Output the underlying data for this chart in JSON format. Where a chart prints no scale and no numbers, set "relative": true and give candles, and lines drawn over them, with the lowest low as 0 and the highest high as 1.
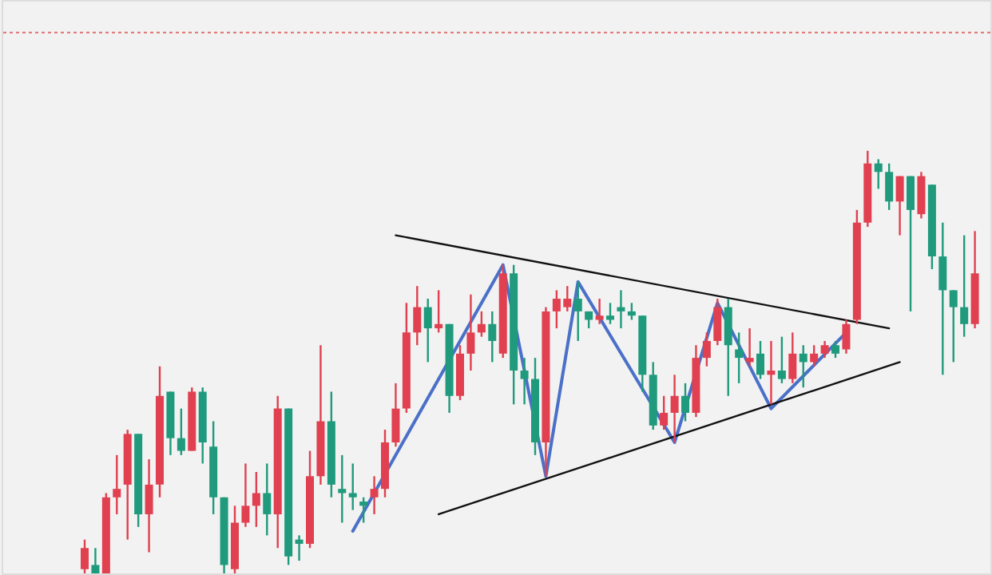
{
  "chart_data": {
    "type": "candlestick",
    "relative": true,
    "categories": [
      null,
      null,
      null,
      null,
      null,
      null,
      null,
      null,
      null,
      null,
      null,
      null,
      null,
      null,
      null,
      null,
      null,
      null,
      null,
      null,
      null,
      null,
      null,
      null,
      null,
      null,
      null,
      null,
      null,
      null,
      null,
      null,
      null,
      null,
      null,
      null,
      null,
      null,
      null,
      null,
      null,
      null,
      null,
      null,
      null,
      null,
      null,
      null,
      null,
      null,
      null,
      null,
      null,
      null,
      null,
      null,
      null,
      null,
      null,
      null,
      null,
      null,
      null,
      null,
      null,
      null,
      null,
      null,
      null,
      null,
      null,
      null,
      null,
      null,
      null,
      null,
      null,
      null,
      null,
      null,
      null,
      null,
      null,
      null
    ],
    "ohlc": [
      [
        0.01,
        0.08,
        0,
        0.06
      ],
      [
        0.02,
        0.06,
        0,
        0.0
      ],
      [
        0,
        0.19,
        0,
        0.18
      ],
      [
        0.18,
        0.28,
        0.14,
        0.2
      ],
      [
        0.21,
        0.34,
        0.08,
        0.33
      ],
      [
        0.33,
        0.33,
        0.11,
        0.14
      ],
      [
        0.14,
        0.27,
        0.05,
        0.21
      ],
      [
        0.21,
        0.49,
        0.18,
        0.42
      ],
      [
        0.43,
        0.43,
        0.28,
        0.32
      ],
      [
        0.32,
        0.39,
        0.28,
        0.29
      ],
      [
        0.29,
        0.44,
        0.29,
        0.43
      ],
      [
        0.43,
        0.44,
        0.26,
        0.31
      ],
      [
        0.3,
        0.36,
        0.14,
        0.18
      ],
      [
        0.18,
        0.18,
        0,
        0.02
      ],
      [
        0.01,
        0.16,
        0,
        0.12
      ],
      [
        0.12,
        0.26,
        0.11,
        0.16
      ],
      [
        0.16,
        0.24,
        0.11,
        0.19
      ],
      [
        0.19,
        0.26,
        0.09,
        0.14
      ],
      [
        0.14,
        0.42,
        0.06,
        0.39
      ],
      [
        0.39,
        0.39,
        0.02,
        0.04
      ],
      [
        0.08,
        0.09,
        0.03,
        0.07
      ],
      [
        0.07,
        0.29,
        0.06,
        0.23
      ],
      [
        0.23,
        0.54,
        0.21,
        0.36
      ],
      [
        0.36,
        0.43,
        0.18,
        0.21
      ],
      [
        0.2,
        0.28,
        0.12,
        0.19
      ],
      [
        0.19,
        0.26,
        0.15,
        0.18
      ],
      [
        0.17,
        0.18,
        0.12,
        0.16
      ],
      [
        0.18,
        0.23,
        0.14,
        0.2
      ],
      [
        0.2,
        0.34,
        0.18,
        0.31
      ],
      [
        0.31,
        0.45,
        0.3,
        0.39
      ],
      [
        0.39,
        0.64,
        0.38,
        0.57
      ],
      [
        0.57,
        0.68,
        0.54,
        0.63
      ],
      [
        0.63,
        0.65,
        0.5,
        0.58
      ],
      [
        0.58,
        0.67,
        0.57,
        0.59
      ],
      [
        0.59,
        0.59,
        0.38,
        0.42
      ],
      [
        0.42,
        0.54,
        0.41,
        0.52
      ],
      [
        0.52,
        0.66,
        0.48,
        0.57
      ],
      [
        0.57,
        0.62,
        0.56,
        0.59
      ],
      [
        0.59,
        0.62,
        0.5,
        0.55
      ],
      [
        0.52,
        0.73,
        0.51,
        0.71
      ],
      [
        0.71,
        0.73,
        0.4,
        0.48
      ],
      [
        0.48,
        0.51,
        0.4,
        0.46
      ],
      [
        0.46,
        0.51,
        0.28,
        0.31
      ],
      [
        0.31,
        0.63,
        0.23,
        0.62
      ],
      [
        0.62,
        0.67,
        0.58,
        0.65
      ],
      [
        0.63,
        0.68,
        0.62,
        0.65
      ],
      [
        0.65,
        0.69,
        0.55,
        0.62
      ],
      [
        0.62,
        0.62,
        0.58,
        0.6
      ],
      [
        0.6,
        0.65,
        0.59,
        0.61
      ],
      [
        0.61,
        0.64,
        0.59,
        0.6
      ],
      [
        0.63,
        0.67,
        0.58,
        0.62
      ],
      [
        0.62,
        0.64,
        0.6,
        0.61
      ],
      [
        0.61,
        0.61,
        0.43,
        0.47
      ],
      [
        0.47,
        0.5,
        0.34,
        0.35
      ],
      [
        0.35,
        0.42,
        0.34,
        0.38
      ],
      [
        0.38,
        0.47,
        0.31,
        0.42
      ],
      [
        0.42,
        0.45,
        0.36,
        0.38
      ],
      [
        0.38,
        0.54,
        0.37,
        0.51
      ],
      [
        0.51,
        0.57,
        0.49,
        0.55
      ],
      [
        0.55,
        0.65,
        0.54,
        0.63
      ],
      [
        0.63,
        0.65,
        0.42,
        0.54
      ],
      [
        0.53,
        0.57,
        0.45,
        0.51
      ],
      [
        0.5,
        0.58,
        0.49,
        0.51
      ],
      [
        0.52,
        0.55,
        0.46,
        0.47
      ],
      [
        0.47,
        0.55,
        0.4,
        0.48
      ],
      [
        0.48,
        0.56,
        0.45,
        0.46
      ],
      [
        0.46,
        0.57,
        0.45,
        0.52
      ],
      [
        0.52,
        0.54,
        0.44,
        0.5
      ],
      [
        0.5,
        0.54,
        0.49,
        0.52
      ],
      [
        0.52,
        0.55,
        0.51,
        0.54
      ],
      [
        0.54,
        0.55,
        0.51,
        0.52
      ],
      [
        0.53,
        0.6,
        0.52,
        0.59
      ],
      [
        0.6,
        0.86,
        0.59,
        0.83
      ],
      [
        0.83,
        1.0,
        0.82,
        0.97
      ],
      [
        0.97,
        0.98,
        0.91,
        0.95
      ],
      [
        0.95,
        0.97,
        0.86,
        0.88
      ],
      [
        0.88,
        0.94,
        0.8,
        0.94
      ],
      [
        0.94,
        0.94,
        0.62,
        0.86
      ],
      [
        0.85,
        0.95,
        0.84,
        0.94
      ],
      [
        0.92,
        0.92,
        0.72,
        0.75
      ],
      [
        0.75,
        0.83,
        0.47,
        0.67
      ],
      [
        0.67,
        0.67,
        0.5,
        0.63
      ],
      [
        0.63,
        0.8,
        0.56,
        0.59
      ],
      [
        0.59,
        0.81,
        0.58,
        0.71
      ]
    ],
    "colors": [
      "#e0404f",
      "#1f9a7c",
      "#e0404f",
      "#e0404f",
      "#e0404f",
      "#1f9a7c",
      "#e0404f",
      "#e0404f",
      "#1f9a7c",
      "#1f9a7c",
      "#e0404f",
      "#1f9a7c",
      "#1f9a7c",
      "#1f9a7c",
      "#e0404f",
      "#e0404f",
      "#e0404f",
      "#1f9a7c",
      "#e0404f",
      "#1f9a7c",
      "#1f9a7c",
      "#e0404f",
      "#e0404f",
      "#1f9a7c",
      "#1f9a7c",
      "#1f9a7c",
      "#1f9a7c",
      "#e0404f",
      "#e0404f",
      "#e0404f",
      "#e0404f",
      "#e0404f",
      "#1f9a7c",
      "#e0404f",
      "#1f9a7c",
      "#e0404f",
      "#e0404f",
      "#e0404f",
      "#1f9a7c",
      "#e0404f",
      "#1f9a7c",
      "#1f9a7c",
      "#1f9a7c",
      "#e0404f",
      "#e0404f",
      "#e0404f",
      "#1f9a7c",
      "#1f9a7c",
      "#e0404f",
      "#1f9a7c",
      "#1f9a7c",
      "#1f9a7c",
      "#1f9a7c",
      "#1f9a7c",
      "#e0404f",
      "#e0404f",
      "#1f9a7c",
      "#e0404f",
      "#e0404f",
      "#e0404f",
      "#1f9a7c",
      "#1f9a7c",
      "#e0404f",
      "#1f9a7c",
      "#e0404f",
      "#1f9a7c",
      "#e0404f",
      "#1f9a7c",
      "#e0404f",
      "#e0404f",
      "#1f9a7c",
      "#e0404f",
      "#e0404f",
      "#e0404f",
      "#1f9a7c",
      "#1f9a7c",
      "#e0404f",
      "#1f9a7c",
      "#e0404f",
      "#1f9a7c",
      "#1f9a7c",
      "#1f9a7c",
      "#1f9a7c",
      "#e0404f"
    ],
    "series": [
      {
        "type": "line",
        "color": "#4a70c8",
        "values": [
          null,
          null,
          null,
          null,
          null,
          null,
          null,
          null,
          null,
          null,
          null,
          null,
          null,
          null,
          null,
          null,
          null,
          null,
          null,
          null,
          null,
          null,
          null,
          null,
          null,
          0.1,
          null,
          null,
          null,
          null,
          null,
          null,
          null,
          null,
          null,
          null,
          null,
          null,
          null,
          0.73,
          null,
          null,
          null,
          0.23,
          null,
          null,
          0.69,
          null,
          null,
          null,
          null,
          null,
          null,
          null,
          null,
          0.31,
          null,
          null,
          null,
          0.64,
          null,
          null,
          null,
          null,
          0.39,
          null,
          null,
          null,
          null,
          null,
          null,
          0.57,
          null,
          null,
          null,
          null,
          null,
          null,
          null,
          null,
          null,
          null,
          null,
          null
        ]
      },
      {
        "type": "line",
        "color": "#111111",
        "values": [
          null,
          null,
          null,
          null,
          null,
          null,
          null,
          null,
          null,
          null,
          null,
          null,
          null,
          null,
          null,
          null,
          null,
          null,
          null,
          null,
          null,
          null,
          null,
          null,
          null,
          null,
          null,
          null,
          null,
          0.8,
          null,
          null,
          null,
          null,
          null,
          null,
          null,
          null,
          null,
          null,
          null,
          null,
          null,
          null,
          null,
          null,
          null,
          null,
          null,
          null,
          null,
          null,
          null,
          null,
          null,
          null,
          null,
          null,
          null,
          null,
          null,
          null,
          null,
          null,
          null,
          null,
          null,
          null,
          null,
          null,
          null,
          null,
          null,
          null,
          null,
          0.58,
          null,
          null,
          null,
          null,
          null,
          null,
          null,
          null
        ]
      },
      {
        "type": "line",
        "color": "#111111",
        "values": [
          null,
          null,
          null,
          null,
          null,
          null,
          null,
          null,
          null,
          null,
          null,
          null,
          null,
          null,
          null,
          null,
          null,
          null,
          null,
          null,
          null,
          null,
          null,
          null,
          null,
          null,
          null,
          null,
          null,
          null,
          null,
          null,
          null,
          0.14,
          null,
          null,
          null,
          null,
          null,
          null,
          null,
          null,
          null,
          null,
          null,
          null,
          null,
          null,
          null,
          null,
          null,
          null,
          null,
          null,
          null,
          null,
          null,
          null,
          null,
          null,
          null,
          null,
          null,
          null,
          null,
          null,
          null,
          null,
          null,
          null,
          null,
          null,
          null,
          null,
          null,
          null,
          0.5,
          null,
          null,
          null,
          null,
          null,
          null,
          null
        ]
      }
    ],
    "ref_lines": [
      {
        "axis": "y",
        "value": 1.28,
        "color": "#e07070",
        "line_style": "dotted"
      }
    ]
  }
}
